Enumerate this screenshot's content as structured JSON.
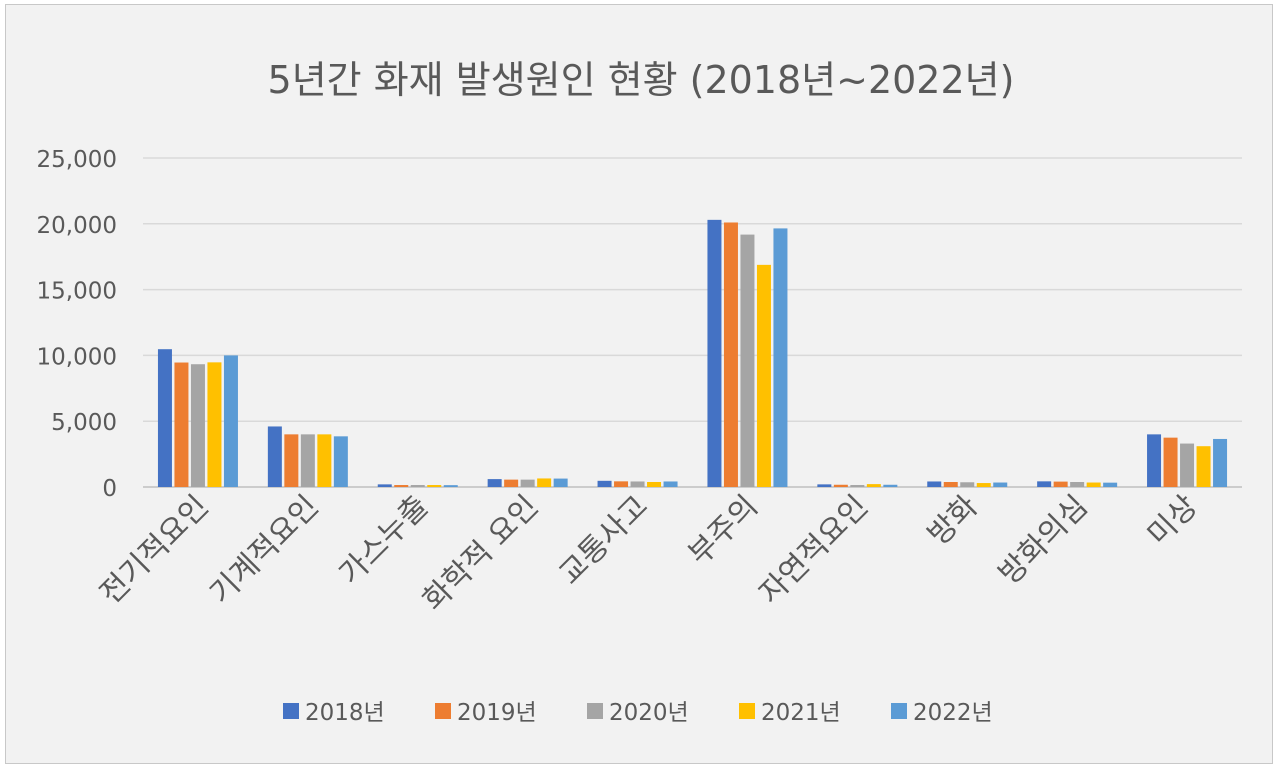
{
  "chart_data": {
    "type": "bar",
    "title": "5년간 화재 발생원인 현황 (2018년~2022년)",
    "xlabel": "",
    "ylabel": "",
    "ylim": [
      0,
      25000
    ],
    "yticks": [
      0,
      5000,
      10000,
      15000,
      20000,
      25000
    ],
    "ytick_labels": [
      "0",
      "5,000",
      "10,000",
      "15,000",
      "20,000",
      "25,000"
    ],
    "grid": true,
    "legend_position": "bottom",
    "categories": [
      "전기적요인",
      "기계적요인",
      "가스누출",
      "화학적 요인",
      "교통사고",
      "부주의",
      "자연적요인",
      "방화",
      "방화의심",
      "미상"
    ],
    "series": [
      {
        "name": "2018년",
        "color": "#4472c4",
        "values": [
          10471,
          4600,
          200,
          600,
          470,
          20300,
          200,
          420,
          430,
          4000
        ]
      },
      {
        "name": "2019년",
        "color": "#ed7d31",
        "values": [
          9459,
          4000,
          150,
          560,
          430,
          20100,
          170,
          380,
          410,
          3750
        ]
      },
      {
        "name": "2020년",
        "color": "#a5a5a5",
        "values": [
          9330,
          4000,
          150,
          560,
          420,
          19180,
          150,
          360,
          380,
          3300
        ]
      },
      {
        "name": "2021년",
        "color": "#ffc000",
        "values": [
          9472,
          4000,
          150,
          650,
          380,
          16880,
          220,
          300,
          340,
          3100
        ]
      },
      {
        "name": "2022년",
        "color": "#5b9bd5",
        "values": [
          10000,
          3850,
          140,
          640,
          420,
          19650,
          170,
          340,
          330,
          3650
        ]
      }
    ]
  }
}
